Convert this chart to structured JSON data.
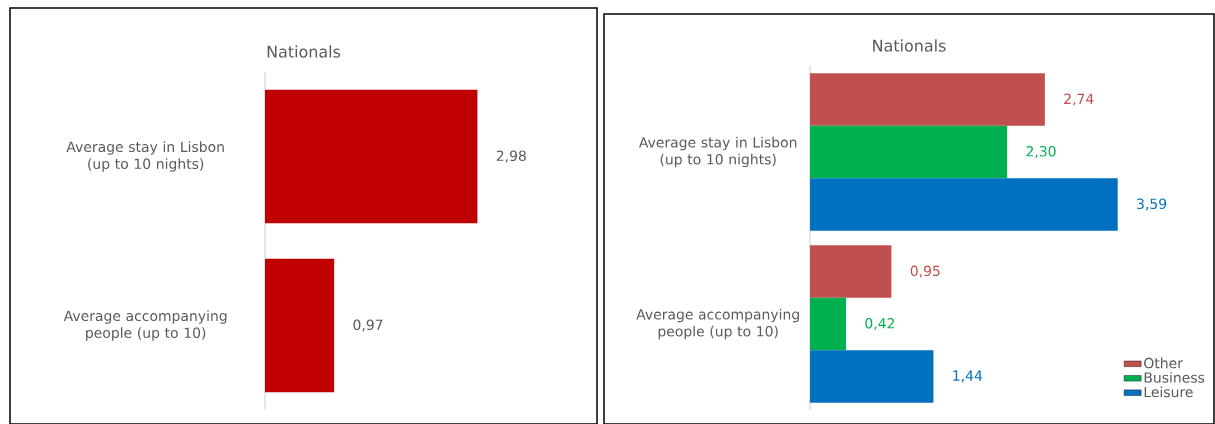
{
  "chart_data": [
    {
      "type": "bar",
      "orientation": "horizontal",
      "title": "Nationals",
      "tick_labels": "y",
      "categories": [
        "Average stay in Lisbon (up to 10 nights)",
        "Average accompanying people (up to 10)"
      ],
      "values": [
        2.98,
        0.97
      ],
      "color": "#c00000",
      "value_labels": [
        "2,98",
        "0,97"
      ]
    },
    {
      "type": "bar",
      "orientation": "horizontal",
      "title": "Nationals",
      "tick_labels": "y",
      "legend": "bottom right",
      "categories": [
        "Average stay in Lisbon (up to 10 nights)",
        "Average accompanying people (up to 10)"
      ],
      "series": [
        {
          "name": "Other",
          "color": "#c0504d",
          "values": [
            2.74,
            0.95
          ],
          "value_labels": [
            "2,74",
            "0,95"
          ]
        },
        {
          "name": "Business",
          "color": "#00b050",
          "values": [
            2.3,
            0.42
          ],
          "value_labels": [
            "2,30",
            "0,42"
          ]
        },
        {
          "name": "Leisure",
          "color": "#0070c0",
          "values": [
            3.59,
            1.44
          ],
          "value_labels": [
            "3,59",
            "1,44"
          ]
        }
      ]
    }
  ]
}
